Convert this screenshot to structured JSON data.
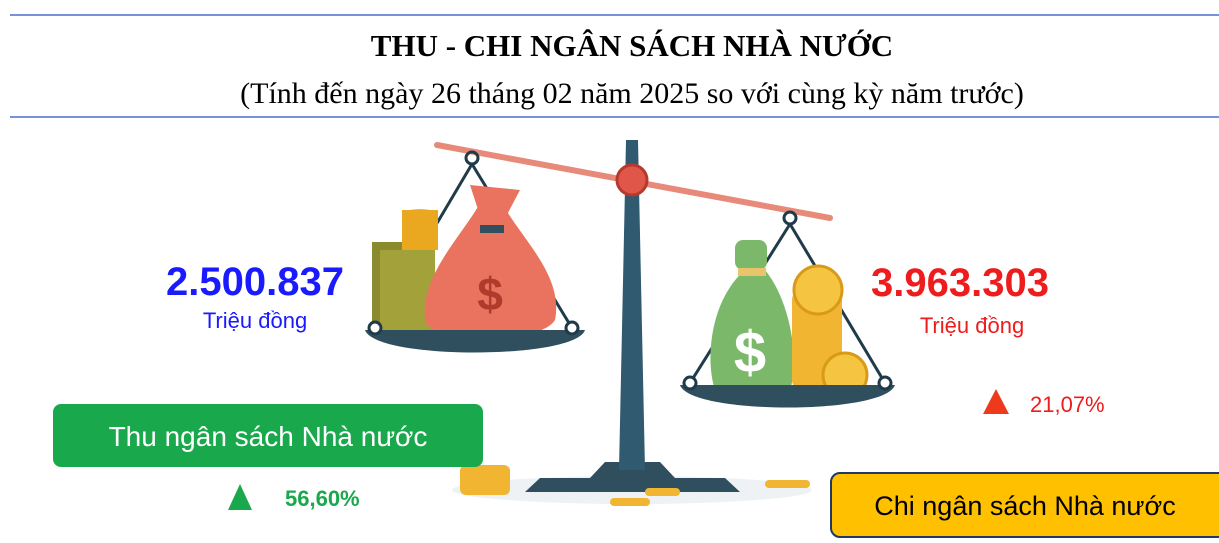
{
  "header": {
    "title": "THU - CHI NGÂN SÁCH NHÀ NƯỚC",
    "subtitle": "(Tính đến ngày 26 tháng 02 năm 2025 so với cùng kỳ năm trước)"
  },
  "revenue": {
    "value": "2.500.837",
    "unit": "Triệu đồng",
    "label": "Thu ngân sách Nhà nước",
    "change": "56,60%"
  },
  "expenditure": {
    "value": "3.963.303",
    "unit": "Triệu đồng",
    "label": "Chi ngân sách Nhà nước",
    "change": "21,07%"
  }
}
